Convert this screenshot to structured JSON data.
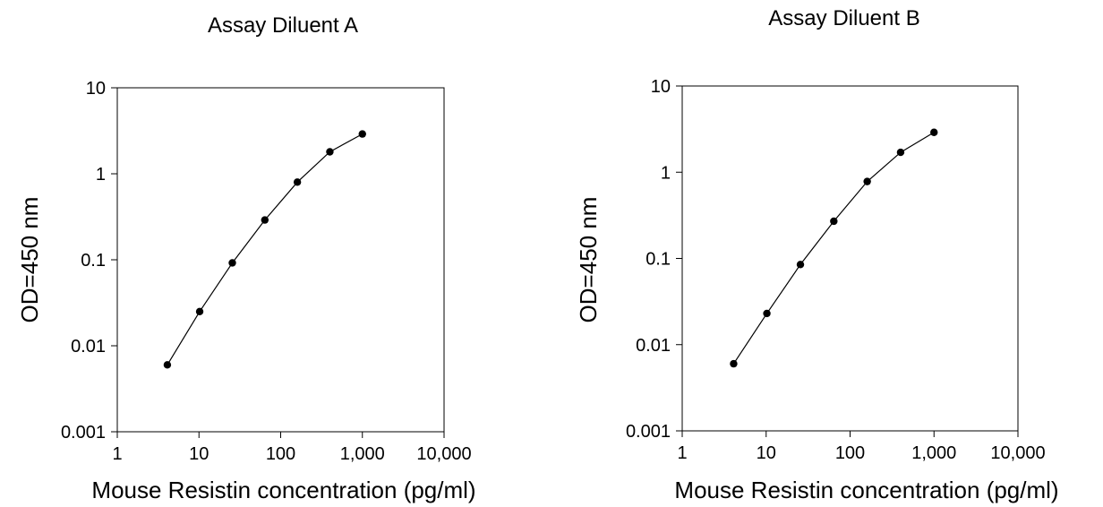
{
  "chart_data": [
    {
      "type": "scatter",
      "title": "Assay Diluent A",
      "xlabel": "Mouse Resistin concentration (pg/ml)",
      "ylabel": "OD=450 nm",
      "xscale": "log",
      "yscale": "log",
      "xlim": [
        1,
        10000
      ],
      "ylim": [
        0.001,
        10
      ],
      "xticks": [
        1,
        10,
        100,
        1000,
        10000
      ],
      "xtick_labels": [
        "1",
        "10",
        "100",
        "1,000",
        "10,000"
      ],
      "yticks": [
        0.001,
        0.01,
        0.1,
        1,
        10
      ],
      "ytick_labels": [
        "0.001",
        "0.01",
        "0.1",
        "1",
        "10"
      ],
      "grid": false,
      "series": [
        {
          "x": [
            4.1,
            10.2,
            25.6,
            64,
            160,
            400,
            1000
          ],
          "y": [
            0.006,
            0.025,
            0.092,
            0.29,
            0.8,
            1.8,
            2.9
          ],
          "marker": "circle",
          "line": true,
          "color": "#000000"
        }
      ]
    },
    {
      "type": "scatter",
      "title": "Assay Diluent B",
      "xlabel": "Mouse Resistin concentration (pg/ml)",
      "ylabel": "OD=450 nm",
      "xscale": "log",
      "yscale": "log",
      "xlim": [
        1,
        10000
      ],
      "ylim": [
        0.001,
        10
      ],
      "xticks": [
        1,
        10,
        100,
        1000,
        10000
      ],
      "xtick_labels": [
        "1",
        "10",
        "100",
        "1,000",
        "10,000"
      ],
      "yticks": [
        0.001,
        0.01,
        0.1,
        1,
        10
      ],
      "ytick_labels": [
        "0.001",
        "0.01",
        "0.1",
        "1",
        "10"
      ],
      "grid": false,
      "series": [
        {
          "x": [
            4.1,
            10.2,
            25.6,
            64,
            160,
            400,
            1000
          ],
          "y": [
            0.006,
            0.023,
            0.085,
            0.27,
            0.78,
            1.7,
            2.9
          ],
          "marker": "circle",
          "line": true,
          "color": "#000000"
        }
      ]
    }
  ]
}
